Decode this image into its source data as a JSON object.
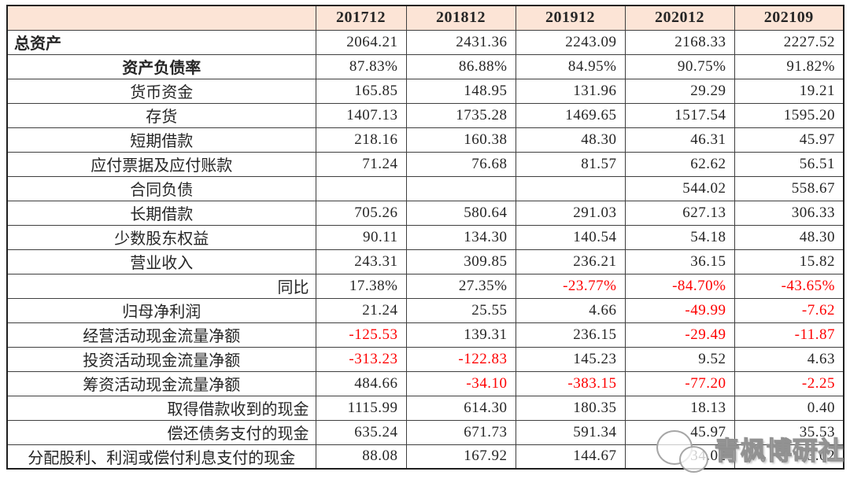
{
  "table": {
    "corner": "",
    "years": [
      "201712",
      "201812",
      "201912",
      "202012",
      "202109"
    ],
    "rows": [
      {
        "label": "总资产",
        "align": "left",
        "bold": true,
        "values": [
          "2064.21",
          "2431.36",
          "2243.09",
          "2168.33",
          "2227.52"
        ]
      },
      {
        "label": "资产负债率",
        "align": "center",
        "bold": true,
        "values": [
          "87.83%",
          "86.88%",
          "84.95%",
          "90.75%",
          "91.82%"
        ]
      },
      {
        "label": "货币资金",
        "align": "center",
        "bold": false,
        "values": [
          "165.85",
          "148.95",
          "131.96",
          "29.29",
          "19.21"
        ]
      },
      {
        "label": "存货",
        "align": "center",
        "bold": false,
        "values": [
          "1407.13",
          "1735.28",
          "1469.65",
          "1517.54",
          "1595.20"
        ]
      },
      {
        "label": "短期借款",
        "align": "center",
        "bold": false,
        "values": [
          "218.16",
          "160.38",
          "48.30",
          "46.31",
          "45.97"
        ]
      },
      {
        "label": "应付票据及应付账款",
        "align": "center",
        "bold": false,
        "values": [
          "71.24",
          "76.68",
          "81.57",
          "62.62",
          "56.51"
        ]
      },
      {
        "label": "合同负债",
        "align": "center",
        "bold": false,
        "values": [
          "",
          "",
          "",
          "544.02",
          "558.67"
        ]
      },
      {
        "label": "长期借款",
        "align": "center",
        "bold": false,
        "values": [
          "705.26",
          "580.64",
          "291.03",
          "627.13",
          "306.33"
        ]
      },
      {
        "label": "少数股东权益",
        "align": "center",
        "bold": false,
        "values": [
          "90.11",
          "134.30",
          "140.54",
          "54.18",
          "48.30"
        ]
      },
      {
        "label": "营业收入",
        "align": "center",
        "bold": false,
        "values": [
          "243.31",
          "309.85",
          "236.21",
          "36.15",
          "15.82"
        ]
      },
      {
        "label": "同比",
        "align": "right",
        "bold": false,
        "values": [
          "17.38%",
          "27.35%",
          "-23.77%",
          "-84.70%",
          "-43.65%"
        ]
      },
      {
        "label": "归母净利润",
        "align": "center",
        "bold": false,
        "values": [
          "21.24",
          "25.55",
          "4.66",
          "-49.99",
          "-7.62"
        ]
      },
      {
        "label": "经营活动现金流量净额",
        "align": "center",
        "bold": false,
        "values": [
          "-125.53",
          "139.31",
          "236.15",
          "-29.49",
          "-11.87"
        ]
      },
      {
        "label": "投资活动现金流量净额",
        "align": "center",
        "bold": false,
        "values": [
          "-313.23",
          "-122.83",
          "145.23",
          "9.52",
          "4.63"
        ]
      },
      {
        "label": "筹资活动现金流量净额",
        "align": "center",
        "bold": false,
        "values": [
          "484.66",
          "-34.10",
          "-383.15",
          "-77.20",
          "-2.25"
        ]
      },
      {
        "label": "取得借款收到的现金",
        "align": "right",
        "bold": false,
        "values": [
          "1115.99",
          "614.30",
          "180.35",
          "18.13",
          "0.40"
        ]
      },
      {
        "label": "偿还债务支付的现金",
        "align": "right",
        "bold": false,
        "values": [
          "635.24",
          "671.73",
          "591.34",
          "45.97",
          "35.53"
        ]
      },
      {
        "label": "分配股利、利润或偿付利息支付的现金",
        "align": "center",
        "bold": false,
        "values": [
          "88.08",
          "167.92",
          "144.67",
          "34.02",
          "3.02"
        ]
      }
    ]
  },
  "watermark": {
    "text": "青枫博研社",
    "icon": "chat-bubbles-logo"
  },
  "colors": {
    "header_bg": "#fce4d6",
    "border": "#3f3f3f",
    "text": "#262626",
    "negative": "#fe0000",
    "page_bg": "#ffffff"
  }
}
